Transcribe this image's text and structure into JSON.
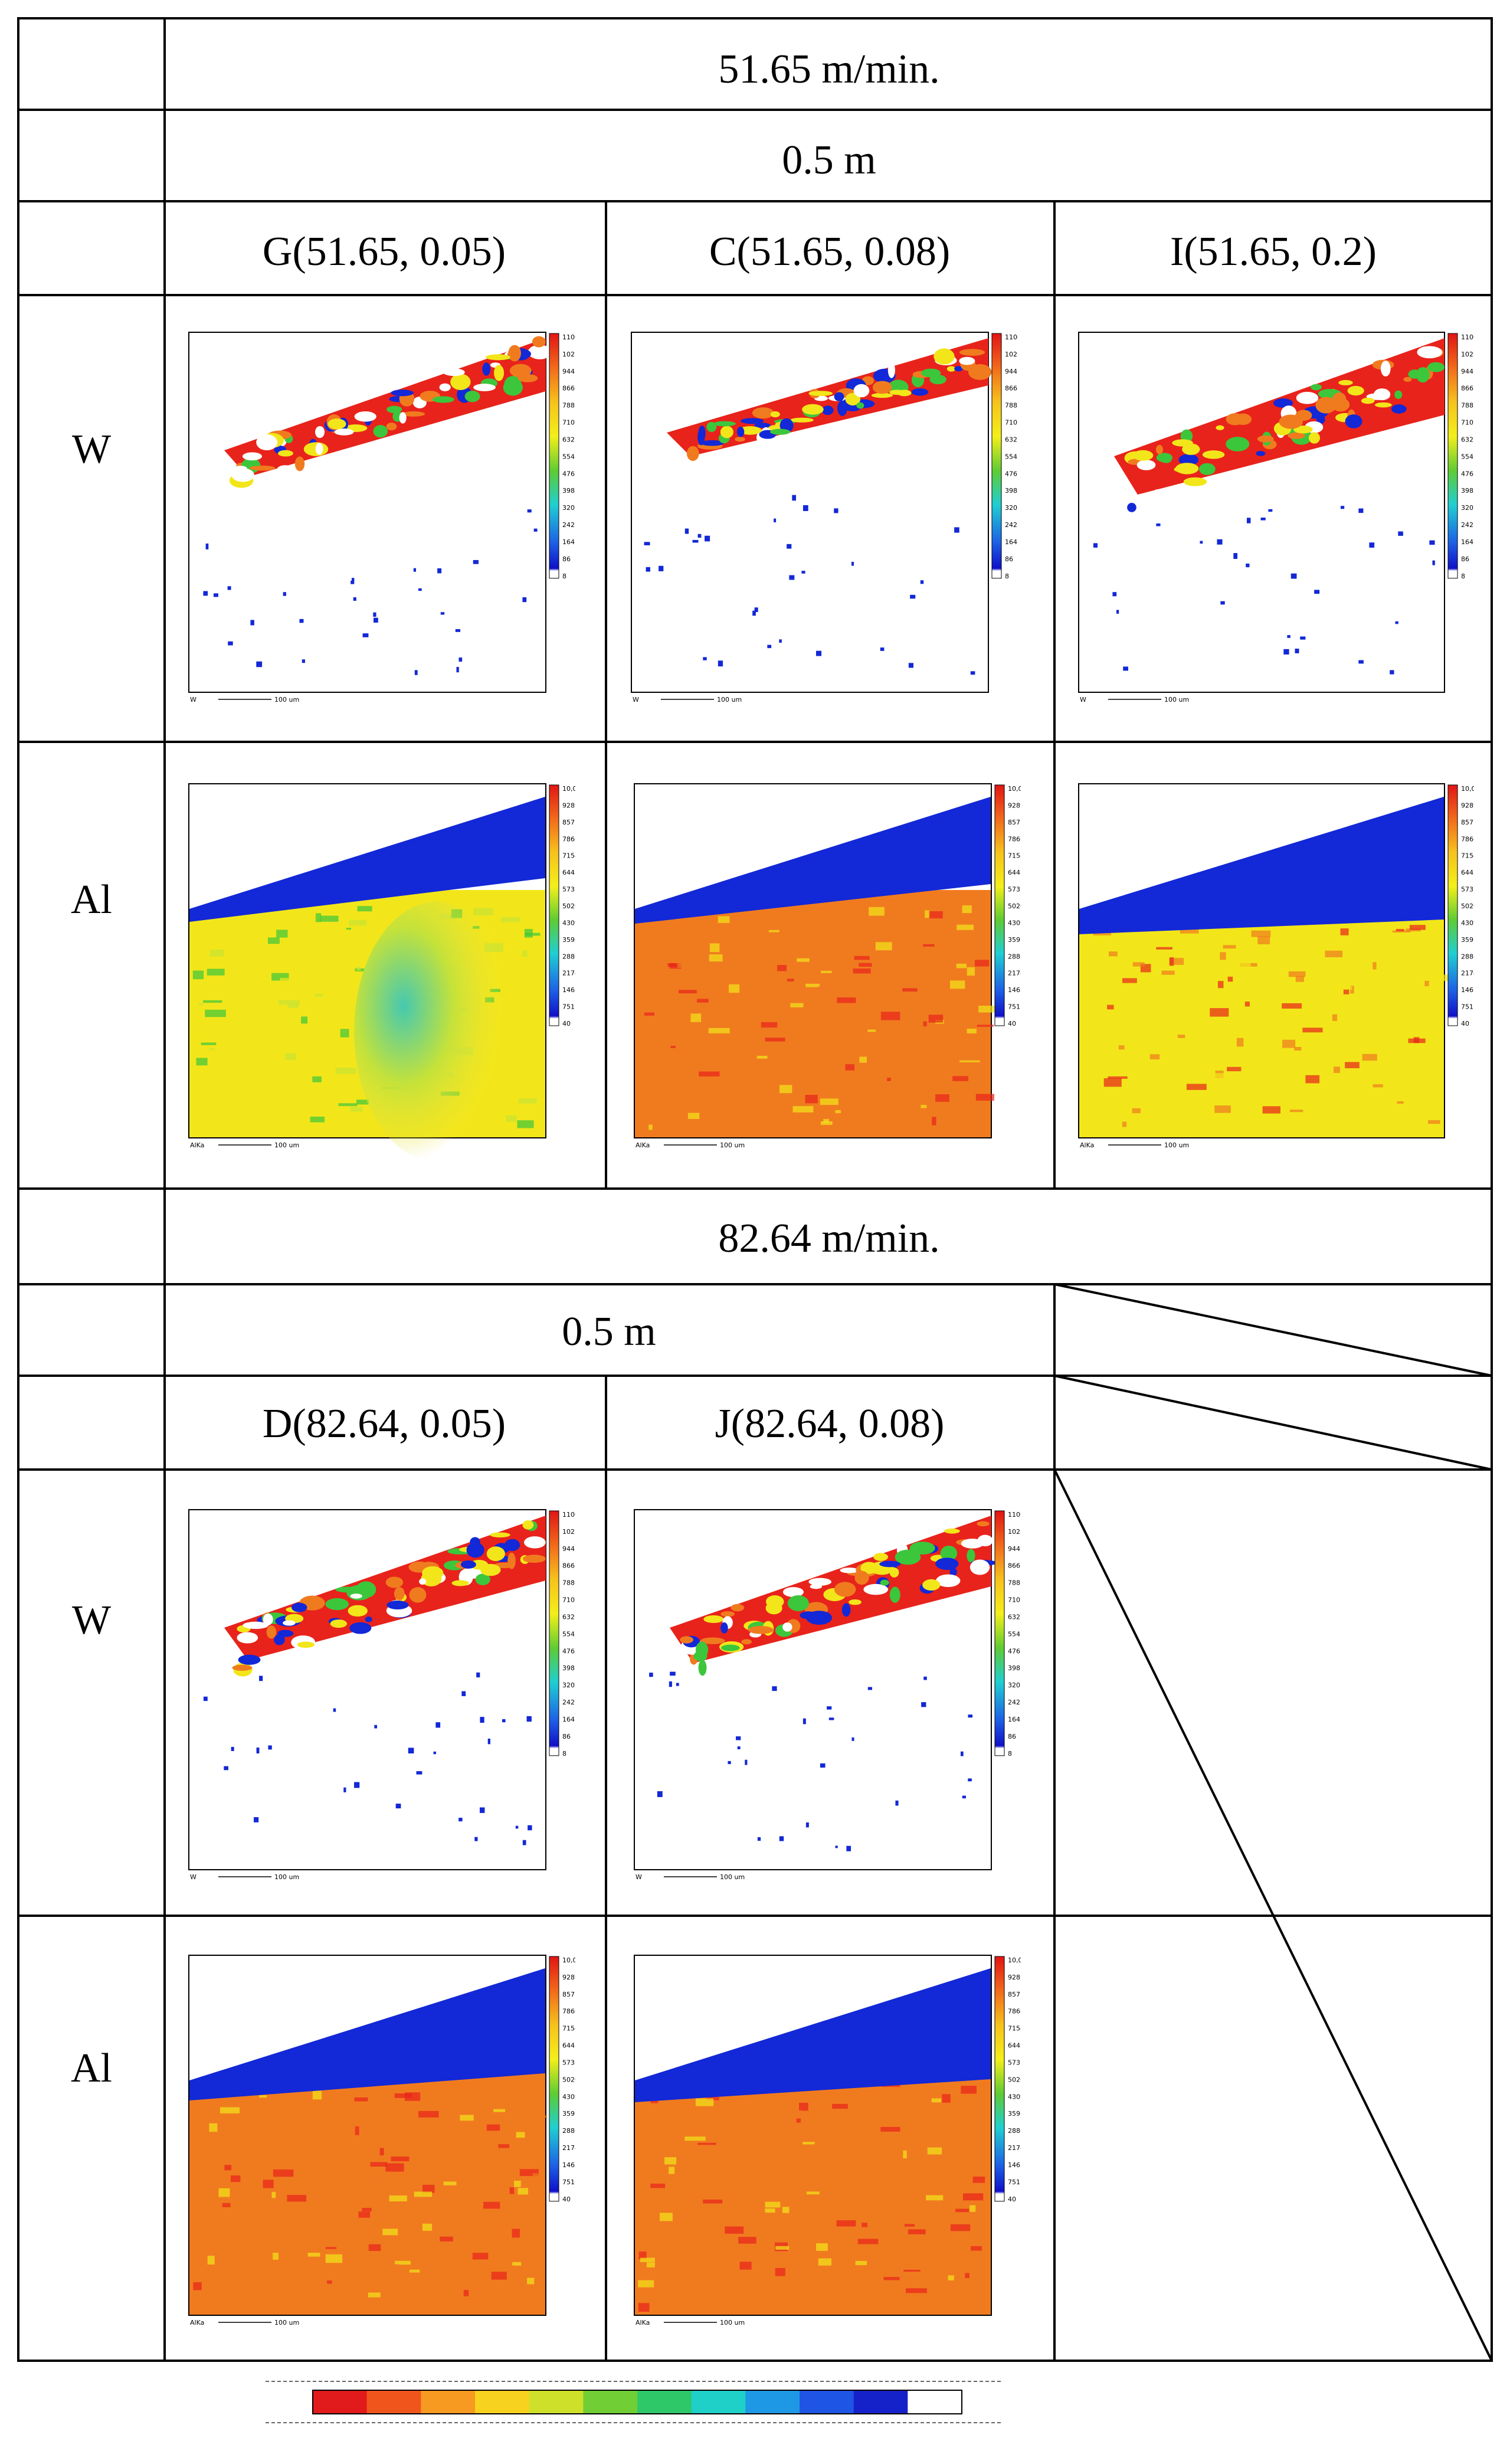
{
  "section1": {
    "speed_header": "51.65 m/min.",
    "depth_header": "0.5 m",
    "columns": [
      "G(51.65, 0.05)",
      "C(51.65, 0.08)",
      "I(51.65, 0.2)"
    ]
  },
  "section2": {
    "speed_header": "82.64 m/min.",
    "depth_header": "0.5 m",
    "columns": [
      "D(82.64, 0.05)",
      "J(82.64, 0.08)"
    ]
  },
  "row_labels": {
    "w": "W",
    "al": "Al"
  },
  "scales": {
    "w": [
      "1100",
      "1022",
      "944",
      "866",
      "788",
      "710",
      "632",
      "554",
      "476",
      "398",
      "320",
      "242",
      "164",
      "86",
      "8"
    ],
    "al": [
      "10,000",
      "9289",
      "8577",
      "7866",
      "7154",
      "6443",
      "5731",
      "5020",
      "4309",
      "3597",
      "2886",
      "2174",
      "1463",
      "751",
      "40"
    ]
  },
  "map_captions": {
    "w": "W",
    "al": "AlKa",
    "scale_bar": "100 um"
  },
  "colors": {
    "high": "#e8231b",
    "orange": "#f07b1f",
    "yellow": "#f2e61a",
    "green": "#3cc63c",
    "cyan": "#22c7d6",
    "blue": "#1328d6",
    "dark_blue": "#0a14b4"
  },
  "legend_ramp": [
    "#e11b1b",
    "#f0561c",
    "#f69a22",
    "#f7d21e",
    "#cfe02a",
    "#71cf35",
    "#2fc868",
    "#1fd0c9",
    "#1e98e4",
    "#1f55e4",
    "#1622c9",
    "#ffffff"
  ]
}
